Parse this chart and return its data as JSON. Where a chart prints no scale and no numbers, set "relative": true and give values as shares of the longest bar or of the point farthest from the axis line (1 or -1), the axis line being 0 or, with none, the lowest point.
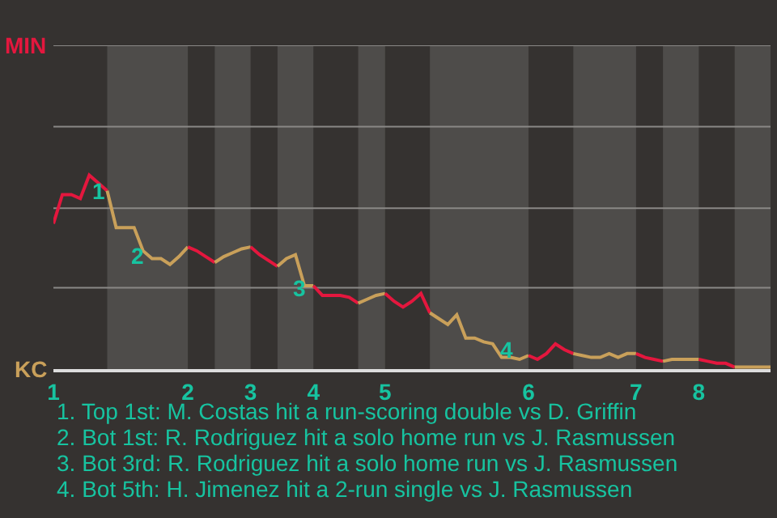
{
  "chart_data": {
    "type": "line",
    "relative": true,
    "categories": [
      "1",
      null,
      null,
      null,
      null,
      null,
      null,
      null,
      null,
      null,
      null,
      null,
      null,
      null,
      null,
      "2",
      null,
      null,
      null,
      null,
      null,
      null,
      "3",
      null,
      null,
      null,
      null,
      null,
      null,
      "4",
      null,
      null,
      null,
      null,
      null,
      null,
      null,
      "5",
      null,
      null,
      null,
      null,
      null,
      null,
      null,
      null,
      null,
      null,
      null,
      null,
      null,
      null,
      null,
      "6",
      null,
      null,
      null,
      null,
      null,
      null,
      null,
      null,
      null,
      null,
      null,
      "7",
      null,
      null,
      null,
      null,
      null,
      null,
      "8",
      null,
      null,
      null,
      null,
      null,
      null,
      null,
      null
    ],
    "ref_lines": [
      {
        "axis": "y",
        "value": 0.42,
        "color": "#8a8886"
      },
      {
        "axis": "y",
        "value": 0.83,
        "color": "#8a8886"
      },
      {
        "axis": "y",
        "value": 1.25,
        "color": "#8a8886"
      },
      {
        "axis": "y",
        "value": 1.67,
        "color": "#8a8886"
      }
    ],
    "marker": "none",
    "line_style": "solid",
    "series": [
      {
        "color": "#e4173e",
        "values": [
          0.75,
          0.9,
          0.9,
          0.88,
          1,
          0.96,
          0.92,
          null,
          null,
          null,
          null,
          null,
          null,
          null,
          null,
          null,
          null,
          null,
          null,
          null,
          null,
          null,
          null,
          null,
          null,
          null,
          null,
          null,
          null,
          null,
          null,
          null,
          null,
          null,
          null,
          null,
          null,
          null,
          null,
          null,
          null,
          null,
          null,
          null,
          null,
          null,
          null,
          null,
          null,
          null,
          null,
          null,
          null,
          null,
          null,
          null,
          null,
          null,
          null,
          null,
          null,
          null,
          null,
          null,
          null,
          null,
          null,
          null,
          null,
          null,
          null,
          null,
          null,
          null,
          null,
          null,
          null,
          null,
          null,
          null,
          null
        ]
      },
      {
        "color": "#c9a05a",
        "values": [
          null,
          null,
          null,
          null,
          null,
          null,
          0.92,
          0.73,
          0.73,
          0.73,
          0.61,
          0.57,
          0.57,
          0.54,
          0.58,
          0.63,
          null,
          null,
          null,
          null,
          null,
          null,
          null,
          null,
          null,
          null,
          null,
          null,
          null,
          null,
          null,
          null,
          null,
          null,
          null,
          null,
          null,
          null,
          null,
          null,
          null,
          null,
          null,
          null,
          null,
          null,
          null,
          null,
          null,
          null,
          null,
          null,
          null,
          null,
          null,
          null,
          null,
          null,
          null,
          null,
          null,
          null,
          null,
          null,
          null,
          null,
          null,
          null,
          null,
          null,
          null,
          null,
          null,
          null,
          null,
          null,
          null,
          null,
          null,
          null,
          null
        ]
      },
      {
        "color": "#e4173e",
        "values": [
          null,
          null,
          null,
          null,
          null,
          null,
          null,
          null,
          null,
          null,
          null,
          null,
          null,
          null,
          null,
          0.63,
          0.61,
          0.58,
          0.55,
          null,
          null,
          null,
          null,
          null,
          null,
          null,
          null,
          null,
          null,
          null,
          null,
          null,
          null,
          null,
          null,
          null,
          null,
          null,
          null,
          null,
          null,
          null,
          null,
          null,
          null,
          null,
          null,
          null,
          null,
          null,
          null,
          null,
          null,
          null,
          null,
          null,
          null,
          null,
          null,
          null,
          null,
          null,
          null,
          null,
          null,
          null,
          null,
          null,
          null,
          null,
          null,
          null,
          null,
          null,
          null,
          null,
          null,
          null,
          null,
          null,
          null
        ]
      },
      {
        "color": "#c9a05a",
        "values": [
          null,
          null,
          null,
          null,
          null,
          null,
          null,
          null,
          null,
          null,
          null,
          null,
          null,
          null,
          null,
          null,
          null,
          null,
          0.55,
          0.58,
          0.6,
          0.62,
          0.63,
          null,
          null,
          null,
          null,
          null,
          null,
          null,
          null,
          null,
          null,
          null,
          null,
          null,
          null,
          null,
          null,
          null,
          null,
          null,
          null,
          null,
          null,
          null,
          null,
          null,
          null,
          null,
          null,
          null,
          null,
          null,
          null,
          null,
          null,
          null,
          null,
          null,
          null,
          null,
          null,
          null,
          null,
          null,
          null,
          null,
          null,
          null,
          null,
          null,
          null,
          null,
          null,
          null,
          null,
          null,
          null,
          null,
          null
        ]
      },
      {
        "color": "#e4173e",
        "values": [
          null,
          null,
          null,
          null,
          null,
          null,
          null,
          null,
          null,
          null,
          null,
          null,
          null,
          null,
          null,
          null,
          null,
          null,
          null,
          null,
          null,
          null,
          0.63,
          0.59,
          0.56,
          0.53,
          null,
          null,
          null,
          null,
          null,
          null,
          null,
          null,
          null,
          null,
          null,
          null,
          null,
          null,
          null,
          null,
          null,
          null,
          null,
          null,
          null,
          null,
          null,
          null,
          null,
          null,
          null,
          null,
          null,
          null,
          null,
          null,
          null,
          null,
          null,
          null,
          null,
          null,
          null,
          null,
          null,
          null,
          null,
          null,
          null,
          null,
          null,
          null,
          null,
          null,
          null,
          null,
          null,
          null,
          null
        ]
      },
      {
        "color": "#c9a05a",
        "values": [
          null,
          null,
          null,
          null,
          null,
          null,
          null,
          null,
          null,
          null,
          null,
          null,
          null,
          null,
          null,
          null,
          null,
          null,
          null,
          null,
          null,
          null,
          null,
          null,
          null,
          0.53,
          0.57,
          0.59,
          0.43,
          0.43,
          null,
          null,
          null,
          null,
          null,
          null,
          null,
          null,
          null,
          null,
          null,
          null,
          null,
          null,
          null,
          null,
          null,
          null,
          null,
          null,
          null,
          null,
          null,
          null,
          null,
          null,
          null,
          null,
          null,
          null,
          null,
          null,
          null,
          null,
          null,
          null,
          null,
          null,
          null,
          null,
          null,
          null,
          null,
          null,
          null,
          null,
          null,
          null,
          null,
          null,
          null
        ]
      },
      {
        "color": "#e4173e",
        "values": [
          null,
          null,
          null,
          null,
          null,
          null,
          null,
          null,
          null,
          null,
          null,
          null,
          null,
          null,
          null,
          null,
          null,
          null,
          null,
          null,
          null,
          null,
          null,
          null,
          null,
          null,
          null,
          null,
          null,
          0.43,
          0.38,
          0.38,
          0.38,
          0.37,
          0.34,
          null,
          null,
          null,
          null,
          null,
          null,
          null,
          null,
          null,
          null,
          null,
          null,
          null,
          null,
          null,
          null,
          null,
          null,
          null,
          null,
          null,
          null,
          null,
          null,
          null,
          null,
          null,
          null,
          null,
          null,
          null,
          null,
          null,
          null,
          null,
          null,
          null,
          null,
          null,
          null,
          null,
          null,
          null,
          null,
          null,
          null
        ]
      },
      {
        "color": "#c9a05a",
        "values": [
          null,
          null,
          null,
          null,
          null,
          null,
          null,
          null,
          null,
          null,
          null,
          null,
          null,
          null,
          null,
          null,
          null,
          null,
          null,
          null,
          null,
          null,
          null,
          null,
          null,
          null,
          null,
          null,
          null,
          null,
          null,
          null,
          null,
          null,
          0.34,
          0.36,
          0.38,
          0.39,
          null,
          null,
          null,
          null,
          null,
          null,
          null,
          null,
          null,
          null,
          null,
          null,
          null,
          null,
          null,
          null,
          null,
          null,
          null,
          null,
          null,
          null,
          null,
          null,
          null,
          null,
          null,
          null,
          null,
          null,
          null,
          null,
          null,
          null,
          null,
          null,
          null,
          null,
          null,
          null,
          null,
          null,
          null
        ]
      },
      {
        "color": "#e4173e",
        "values": [
          null,
          null,
          null,
          null,
          null,
          null,
          null,
          null,
          null,
          null,
          null,
          null,
          null,
          null,
          null,
          null,
          null,
          null,
          null,
          null,
          null,
          null,
          null,
          null,
          null,
          null,
          null,
          null,
          null,
          null,
          null,
          null,
          null,
          null,
          null,
          null,
          null,
          0.39,
          0.35,
          0.32,
          0.35,
          0.39,
          0.29,
          null,
          null,
          null,
          null,
          null,
          null,
          null,
          null,
          null,
          null,
          null,
          null,
          null,
          null,
          null,
          null,
          null,
          null,
          null,
          null,
          null,
          null,
          null,
          null,
          null,
          null,
          null,
          null,
          null,
          null,
          null,
          null,
          null,
          null,
          null,
          null,
          null,
          null
        ]
      },
      {
        "color": "#c9a05a",
        "values": [
          null,
          null,
          null,
          null,
          null,
          null,
          null,
          null,
          null,
          null,
          null,
          null,
          null,
          null,
          null,
          null,
          null,
          null,
          null,
          null,
          null,
          null,
          null,
          null,
          null,
          null,
          null,
          null,
          null,
          null,
          null,
          null,
          null,
          null,
          null,
          null,
          null,
          null,
          null,
          null,
          null,
          null,
          0.29,
          0.26,
          0.23,
          0.28,
          0.16,
          0.16,
          0.14,
          0.13,
          0.06,
          0.06,
          0.05,
          0.07,
          null,
          null,
          null,
          null,
          null,
          null,
          null,
          null,
          null,
          null,
          null,
          null,
          null,
          null,
          null,
          null,
          null,
          null,
          null,
          null,
          null,
          null,
          null,
          null,
          null,
          null,
          null
        ]
      },
      {
        "color": "#e4173e",
        "values": [
          null,
          null,
          null,
          null,
          null,
          null,
          null,
          null,
          null,
          null,
          null,
          null,
          null,
          null,
          null,
          null,
          null,
          null,
          null,
          null,
          null,
          null,
          null,
          null,
          null,
          null,
          null,
          null,
          null,
          null,
          null,
          null,
          null,
          null,
          null,
          null,
          null,
          null,
          null,
          null,
          null,
          null,
          null,
          null,
          null,
          null,
          null,
          null,
          null,
          null,
          null,
          null,
          null,
          0.07,
          0.05,
          0.08,
          0.13,
          0.1,
          0.08,
          null,
          null,
          null,
          null,
          null,
          null,
          null,
          null,
          null,
          null,
          null,
          null,
          null,
          null,
          null,
          null,
          null,
          null,
          null,
          null,
          null,
          null
        ]
      },
      {
        "color": "#c9a05a",
        "values": [
          null,
          null,
          null,
          null,
          null,
          null,
          null,
          null,
          null,
          null,
          null,
          null,
          null,
          null,
          null,
          null,
          null,
          null,
          null,
          null,
          null,
          null,
          null,
          null,
          null,
          null,
          null,
          null,
          null,
          null,
          null,
          null,
          null,
          null,
          null,
          null,
          null,
          null,
          null,
          null,
          null,
          null,
          null,
          null,
          null,
          null,
          null,
          null,
          null,
          null,
          null,
          null,
          null,
          null,
          null,
          null,
          null,
          null,
          0.08,
          0.07,
          0.06,
          0.06,
          0.08,
          0.06,
          0.08,
          0.08,
          null,
          null,
          null,
          null,
          null,
          null,
          null,
          null,
          null,
          null,
          null,
          null,
          null,
          null,
          null
        ]
      },
      {
        "color": "#e4173e",
        "values": [
          null,
          null,
          null,
          null,
          null,
          null,
          null,
          null,
          null,
          null,
          null,
          null,
          null,
          null,
          null,
          null,
          null,
          null,
          null,
          null,
          null,
          null,
          null,
          null,
          null,
          null,
          null,
          null,
          null,
          null,
          null,
          null,
          null,
          null,
          null,
          null,
          null,
          null,
          null,
          null,
          null,
          null,
          null,
          null,
          null,
          null,
          null,
          null,
          null,
          null,
          null,
          null,
          null,
          null,
          null,
          null,
          null,
          null,
          null,
          null,
          null,
          null,
          null,
          null,
          null,
          0.08,
          0.06,
          0.05,
          0.04,
          null,
          null,
          null,
          null,
          null,
          null,
          null,
          null,
          null,
          null,
          null,
          null
        ]
      },
      {
        "color": "#c9a05a",
        "values": [
          null,
          null,
          null,
          null,
          null,
          null,
          null,
          null,
          null,
          null,
          null,
          null,
          null,
          null,
          null,
          null,
          null,
          null,
          null,
          null,
          null,
          null,
          null,
          null,
          null,
          null,
          null,
          null,
          null,
          null,
          null,
          null,
          null,
          null,
          null,
          null,
          null,
          null,
          null,
          null,
          null,
          null,
          null,
          null,
          null,
          null,
          null,
          null,
          null,
          null,
          null,
          null,
          null,
          null,
          null,
          null,
          null,
          null,
          null,
          null,
          null,
          null,
          null,
          null,
          null,
          null,
          null,
          null,
          0.04,
          0.05,
          0.05,
          0.05,
          0.05,
          null,
          null,
          null,
          null,
          null,
          null,
          null,
          null
        ]
      },
      {
        "color": "#e4173e",
        "values": [
          null,
          null,
          null,
          null,
          null,
          null,
          null,
          null,
          null,
          null,
          null,
          null,
          null,
          null,
          null,
          null,
          null,
          null,
          null,
          null,
          null,
          null,
          null,
          null,
          null,
          null,
          null,
          null,
          null,
          null,
          null,
          null,
          null,
          null,
          null,
          null,
          null,
          null,
          null,
          null,
          null,
          null,
          null,
          null,
          null,
          null,
          null,
          null,
          null,
          null,
          null,
          null,
          null,
          null,
          null,
          null,
          null,
          null,
          null,
          null,
          null,
          null,
          null,
          null,
          null,
          null,
          null,
          null,
          null,
          null,
          null,
          null,
          0.05,
          0.04,
          0.03,
          0.03,
          0.01,
          null,
          null,
          null,
          null
        ]
      },
      {
        "color": "#c9a05a",
        "values": [
          null,
          null,
          null,
          null,
          null,
          null,
          null,
          null,
          null,
          null,
          null,
          null,
          null,
          null,
          null,
          null,
          null,
          null,
          null,
          null,
          null,
          null,
          null,
          null,
          null,
          null,
          null,
          null,
          null,
          null,
          null,
          null,
          null,
          null,
          null,
          null,
          null,
          null,
          null,
          null,
          null,
          null,
          null,
          null,
          null,
          null,
          null,
          null,
          null,
          null,
          null,
          null,
          null,
          null,
          null,
          null,
          null,
          null,
          null,
          null,
          null,
          null,
          null,
          null,
          null,
          null,
          null,
          null,
          null,
          null,
          null,
          null,
          null,
          null,
          null,
          null,
          0.01,
          0.01,
          0.01,
          0.01,
          0.01
        ]
      }
    ],
    "annotations": [
      "MIN",
      "KC",
      "1",
      "2",
      "3",
      "4",
      "1. Top 1st: M. Costas hit a run-scoring double vs D. Griffin",
      "2. Bot 1st: R. Rodriguez hit a solo home run vs J. Rasmussen",
      "3. Bot 3rd: R. Rodriguez hit a solo home run vs J. Rasmussen",
      "4. Bot 5th: H. Jimenez hit a 2-run single vs J. Rasmussen"
    ]
  }
}
